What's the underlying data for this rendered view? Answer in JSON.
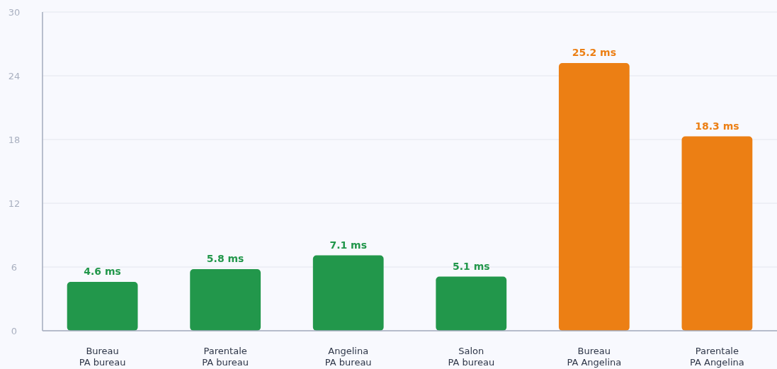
{
  "chart_data": {
    "type": "bar",
    "categories": [
      "Bureau\nPA bureau",
      "Parentale\nPA bureau",
      "Angelina\nPA bureau",
      "Salon\nPA bureau",
      "Bureau\nPA Angelina",
      "Parentale\nPA Angelina"
    ],
    "values": [
      4.6,
      5.8,
      7.1,
      5.1,
      25.2,
      18.3
    ],
    "colors": [
      "#22974b",
      "#22974b",
      "#22974b",
      "#22974b",
      "#ec7f14",
      "#ec7f14"
    ],
    "value_labels": [
      "4.6 ms",
      "5.8 ms",
      "7.1 ms",
      "5.1 ms",
      "25.2 ms",
      "18.3 ms"
    ],
    "ylim": [
      0,
      30
    ],
    "yticks": [
      0,
      6,
      12,
      18,
      24,
      30
    ],
    "grid": "y"
  }
}
